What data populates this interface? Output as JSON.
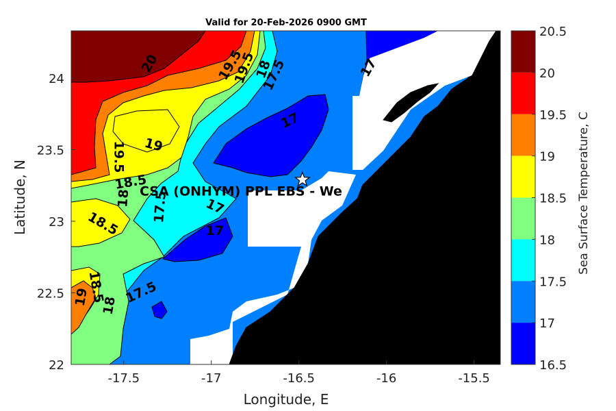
{
  "title": "Valid for 20-Feb-2026 0900 GMT",
  "x_axis": {
    "label": "Longitude, E",
    "ticks": [
      "-17.5",
      "-17",
      "-16.5",
      "-16",
      "-15.5"
    ]
  },
  "y_axis": {
    "label": "Latitude, N",
    "ticks": [
      "24",
      "23.5",
      "23",
      "22.5",
      "22"
    ]
  },
  "site_label": "CSA (ONHYM) PPL EBS  - We",
  "colorbar": {
    "label": "Sea Surface Temperature, C",
    "ticks": [
      "20.5",
      "20",
      "19.5",
      "19",
      "18.5",
      "18",
      "17.5",
      "17",
      "16.5"
    ],
    "colors": [
      "#800000",
      "#ff0000",
      "#ff8000",
      "#ffff00",
      "#80ff80",
      "#00ffff",
      "#0080ff",
      "#0000ff"
    ]
  },
  "contour_labels": [
    {
      "text": "20",
      "lon": -17.35,
      "lat": 24.1,
      "rot": -60
    },
    {
      "text": "19.5",
      "lon": -16.89,
      "lat": 24.09,
      "rot": -60
    },
    {
      "text": "19.5",
      "lon": -16.81,
      "lat": 24.07,
      "rot": -70
    },
    {
      "text": "18",
      "lon": -16.7,
      "lat": 24.06,
      "rot": -70
    },
    {
      "text": "17.5",
      "lon": -16.64,
      "lat": 24.02,
      "rot": -65
    },
    {
      "text": "17",
      "lon": -16.1,
      "lat": 24.07,
      "rot": -60
    },
    {
      "text": "17",
      "lon": -16.55,
      "lat": 23.7,
      "rot": -25
    },
    {
      "text": "19",
      "lon": -17.33,
      "lat": 23.53,
      "rot": 15
    },
    {
      "text": "19.5",
      "lon": -17.53,
      "lat": 23.45,
      "rot": 90
    },
    {
      "text": "18.5",
      "lon": -17.46,
      "lat": 23.27,
      "rot": -10
    },
    {
      "text": "18",
      "lon": -17.5,
      "lat": 23.16,
      "rot": -85
    },
    {
      "text": "17.5",
      "lon": -17.29,
      "lat": 23.1,
      "rot": -85
    },
    {
      "text": "17",
      "lon": -16.98,
      "lat": 23.1,
      "rot": 25
    },
    {
      "text": "18.5",
      "lon": -17.62,
      "lat": 22.98,
      "rot": 30
    },
    {
      "text": "17",
      "lon": -16.98,
      "lat": 22.93,
      "rot": 0
    },
    {
      "text": "18.5",
      "lon": -17.66,
      "lat": 22.54,
      "rot": 80
    },
    {
      "text": "17.5",
      "lon": -17.4,
      "lat": 22.5,
      "rot": -25
    },
    {
      "text": "19",
      "lon": -17.74,
      "lat": 22.47,
      "rot": -80
    },
    {
      "text": "18",
      "lon": -17.58,
      "lat": 22.41,
      "rot": -80
    }
  ],
  "site": {
    "lon": -16.48,
    "lat": 23.29
  }
}
